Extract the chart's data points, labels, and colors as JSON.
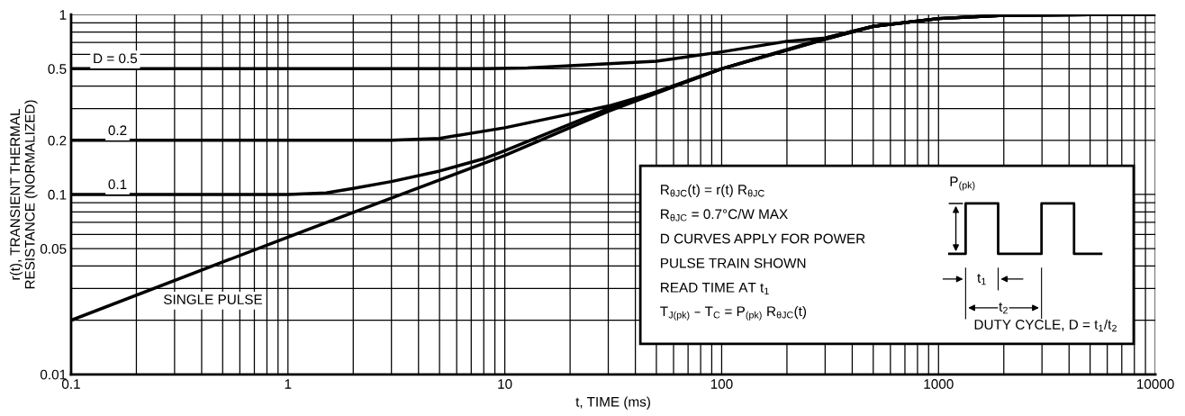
{
  "chart_data": {
    "type": "line",
    "xlabel": "t, TIME (ms)",
    "ylabel": "r(t), TRANSIENT THERMAL\nRESISTANCE (NORMALIZED)",
    "log": "xy",
    "xlim": [
      0.1,
      10000
    ],
    "xticks": [
      0.1,
      1,
      10,
      100,
      1000,
      10000
    ],
    "ylim": [
      0.01,
      1
    ],
    "yticks": [
      0.01,
      0.05,
      0.1,
      0.2,
      0.5,
      1
    ],
    "grid": true,
    "marker": "none",
    "line_style": "solid",
    "series": [
      {
        "color": "#000000",
        "x": [
          0.1,
          1,
          3,
          5,
          8,
          12.7,
          20,
          50,
          100,
          200,
          300,
          500,
          1000,
          2000,
          5000,
          10000
        ],
        "values": [
          0.5,
          0.5,
          0.5,
          0.5,
          0.5,
          0.505,
          0.52,
          0.55,
          0.62,
          0.71,
          0.74,
          0.86,
          0.95,
          0.99,
          1.0,
          1.0
        ]
      },
      {
        "color": "#000000",
        "x": [
          0.1,
          1,
          3,
          5,
          10,
          20,
          30,
          50,
          100,
          300,
          500,
          1000,
          2000,
          5000,
          10000
        ],
        "values": [
          0.2,
          0.2,
          0.2,
          0.205,
          0.235,
          0.28,
          0.31,
          0.37,
          0.5,
          0.74,
          0.86,
          0.95,
          0.99,
          1.0,
          1.0
        ]
      },
      {
        "color": "#000000",
        "x": [
          0.1,
          1,
          1.5,
          2,
          3,
          5,
          8,
          10,
          30,
          100,
          300,
          500,
          1000,
          2000,
          5000,
          10000
        ],
        "values": [
          0.1,
          0.1,
          0.102,
          0.108,
          0.118,
          0.135,
          0.158,
          0.175,
          0.3,
          0.5,
          0.73,
          0.86,
          0.95,
          0.99,
          1.0,
          1.0
        ]
      },
      {
        "color": "#000000",
        "x": [
          0.1,
          1,
          10,
          30,
          100,
          300,
          500,
          1000,
          2000,
          5000,
          10000
        ],
        "values": [
          0.02,
          0.058,
          0.165,
          0.29,
          0.5,
          0.73,
          0.86,
          0.95,
          0.99,
          1.0,
          1.0
        ]
      }
    ],
    "annotations": [
      "D = 0.5",
      "0.2",
      "0.1",
      "SINGLE PULSE",
      "R$_{θJC}$(t) = r(t) R$_{θJC}$",
      "R$_{θJC}$ = 0.7°C/W MAX",
      "D CURVES APPLY FOR POWER",
      "PULSE TRAIN SHOWN",
      "READ TIME AT t$_{1}$",
      "T$_{J(pk)}$ – T$_{C}$ = P$_{(pk)}$ R$_{θJC}$(t)",
      "P$_{(pk)}$",
      "t$_{1}$",
      "t$_{2}$",
      "DUTY CYCLE, D = t$_{1}$/t$_{2}$"
    ]
  }
}
